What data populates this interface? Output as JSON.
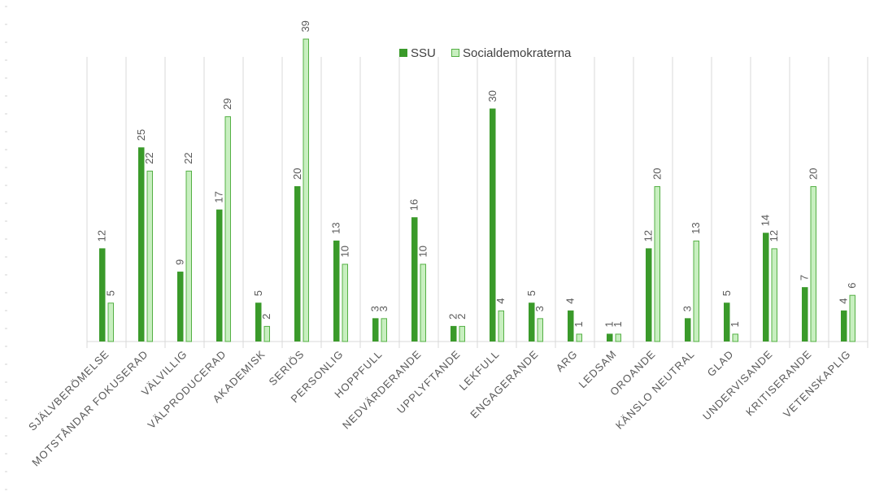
{
  "chart_data": {
    "type": "bar",
    "categories": [
      "SJÄLVBERÖMELSE",
      "MOTSTÅNDAR FOKUSERAD",
      "VÄLVILLIG",
      "VÄLPRODUCERAD",
      "AKADEMISK",
      "SERIÖS",
      "PERSONLIG",
      "HOPPFULL",
      "NEDVÄRDERANDE",
      "UPPLYFTANDE",
      "LEKFULL",
      "ENGAGERANDE",
      "ARG",
      "LEDSAM",
      "OROANDE",
      "KÄNSLO NEUTRAL",
      "GLAD",
      "UNDERVISANDE",
      "KRITISERANDE",
      "VETENSKAPLIG"
    ],
    "series": [
      {
        "name": "SSU",
        "color": "#3a9a2a",
        "values": [
          12,
          25,
          9,
          17,
          5,
          20,
          13,
          3,
          16,
          2,
          30,
          5,
          4,
          1,
          12,
          3,
          5,
          14,
          7,
          4
        ]
      },
      {
        "name": "Socialdemokraterna",
        "color": "#c8efc0",
        "stroke": "#55b045",
        "values": [
          5,
          22,
          22,
          29,
          2,
          39,
          10,
          3,
          10,
          2,
          4,
          3,
          1,
          1,
          20,
          13,
          1,
          12,
          20,
          6
        ]
      }
    ],
    "ylim": [
      0,
      40
    ],
    "grid": "vertical category separators",
    "legend_position": "top"
  }
}
